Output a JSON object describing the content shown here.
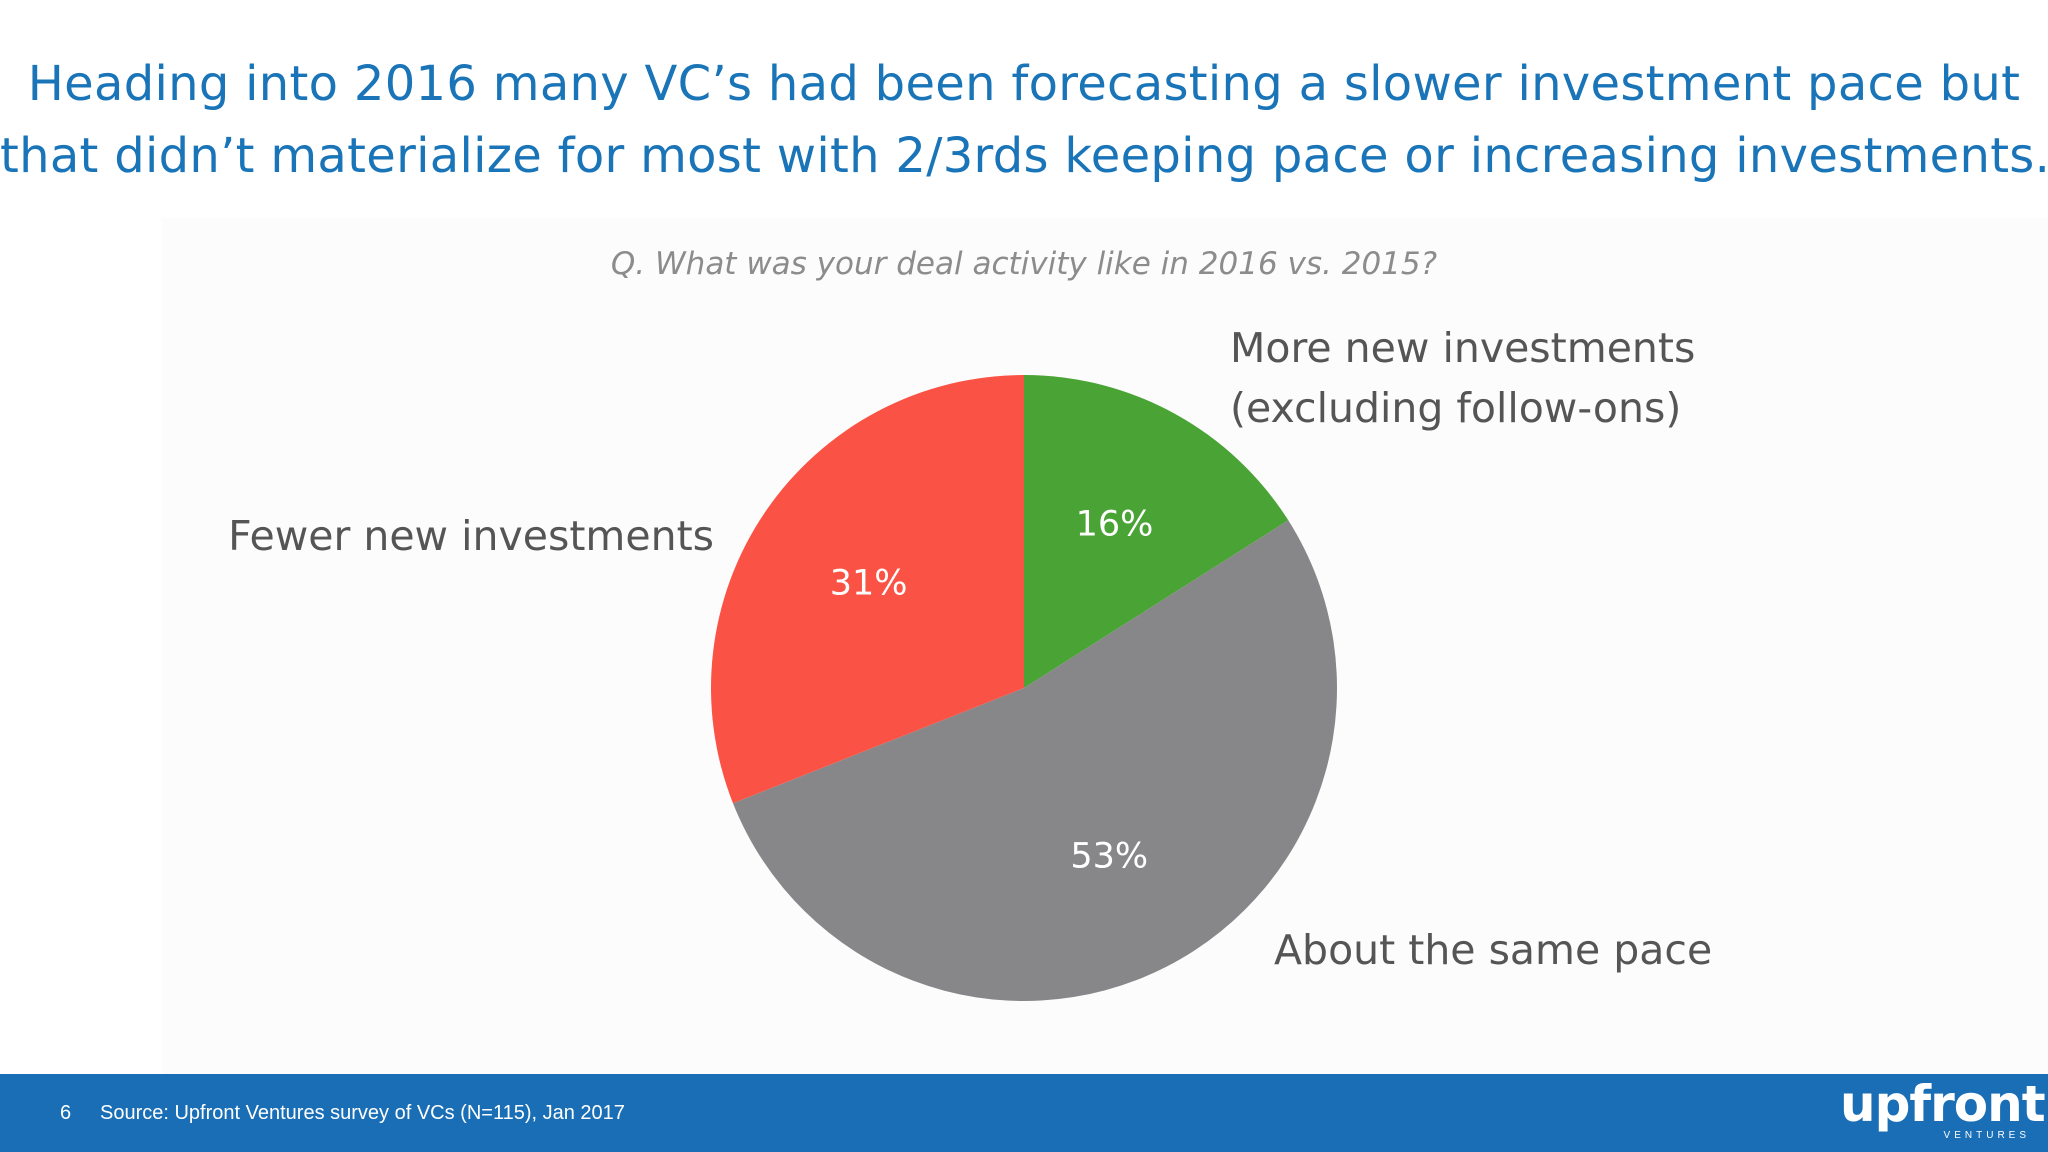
{
  "headline": {
    "line1": "Heading into 2016 many VC’s had been forecasting a slower investment pace but",
    "line2": "that didn’t materialize for most with 2/3rds keeping pace or increasing investments."
  },
  "chart_data": {
    "type": "pie",
    "title": "Q. What was your deal activity like in 2016 vs. 2015?",
    "categories": [
      "More new investments (excluding follow-ons)",
      "About the same pace",
      "Fewer new investments"
    ],
    "values": [
      16,
      53,
      31
    ],
    "value_labels": [
      "16%",
      "53%",
      "31%"
    ],
    "category_label_lines": [
      [
        "More new investments",
        "(excluding follow-ons)"
      ],
      [
        "About the same pace"
      ],
      [
        "Fewer new investments"
      ]
    ],
    "colors": [
      "#4aa335",
      "#87878a",
      "#fa5345"
    ],
    "start": "12 o'clock, clockwise",
    "legend": "none (outside slice labels)"
  },
  "footer": {
    "page_number": "6",
    "source": "Source: Upfront Ventures survey of VCs (N=115), Jan 2017",
    "logo_text": "upfront",
    "logo_subtext": "VENTURES",
    "background_color": "#1a6eb5"
  }
}
